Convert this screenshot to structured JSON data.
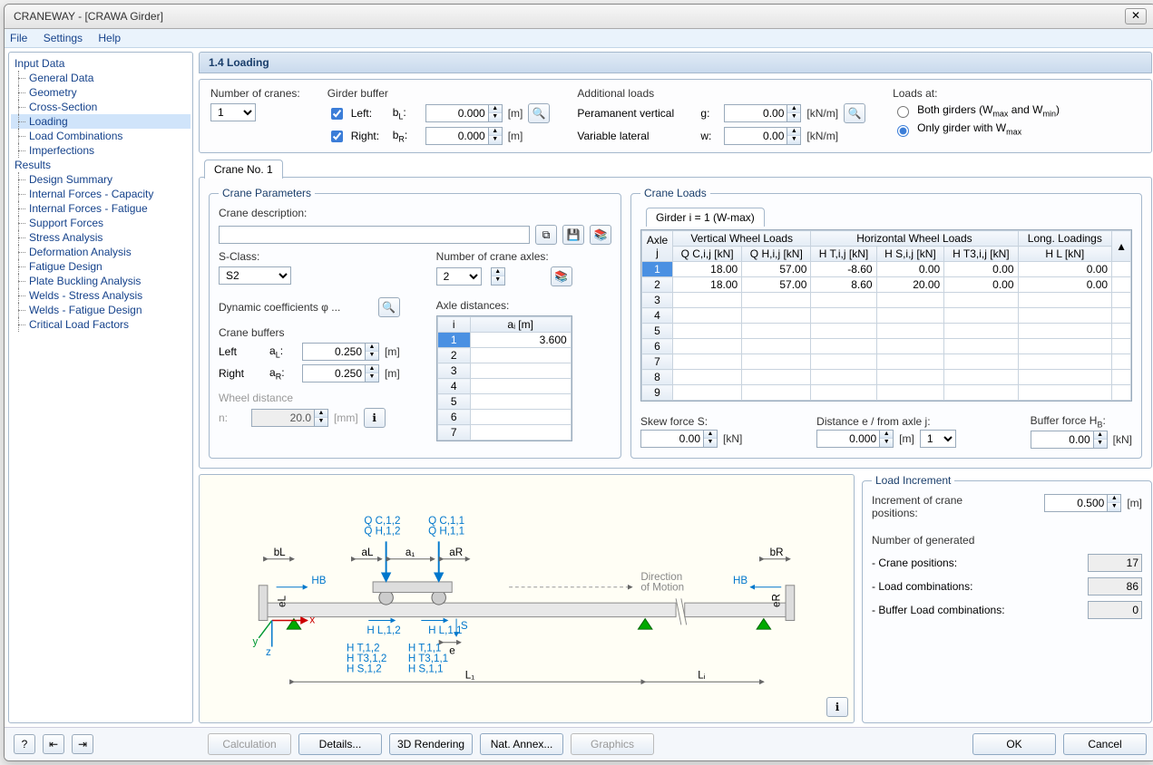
{
  "window": {
    "title": "CRANEWAY - [CRAWA Girder]"
  },
  "menu": [
    "File",
    "Settings",
    "Help"
  ],
  "tree": {
    "input": {
      "label": "Input Data",
      "items": [
        "General Data",
        "Geometry",
        "Cross-Section",
        "Loading",
        "Load Combinations",
        "Imperfections"
      ],
      "selected": 3
    },
    "results": {
      "label": "Results",
      "items": [
        "Design Summary",
        "Internal Forces - Capacity",
        "Internal Forces - Fatigue",
        "Support Forces",
        "Stress Analysis",
        "Deformation Analysis",
        "Fatigue Design",
        "Plate Buckling Analysis",
        "Welds - Stress Analysis",
        "Welds - Fatigue Design",
        "Critical Load Factors"
      ]
    }
  },
  "section": "1.4 Loading",
  "top": {
    "numCranesLabel": "Number of cranes:",
    "numCranes": "1",
    "girderBufferLabel": "Girder buffer",
    "left": {
      "checked": true,
      "label": "Left:",
      "sym": "bL:",
      "val": "0.000",
      "unit": "[m]"
    },
    "right": {
      "checked": true,
      "label": "Right:",
      "sym": "bR:",
      "val": "0.000",
      "unit": "[m]"
    },
    "addlLoadsLabel": "Additional loads",
    "permVert": {
      "label": "Peramanent vertical",
      "sym": "g:",
      "val": "0.00",
      "unit": "[kN/m]"
    },
    "varLat": {
      "label": "Variable lateral",
      "sym": "w:",
      "val": "0.00",
      "unit": "[kN/m]"
    },
    "loadsAtLabel": "Loads at:",
    "both": "Both girders (Wmax and Wmin)",
    "only": "Only girder with Wmax",
    "onlySelected": true
  },
  "craneTab": "Crane No. 1",
  "params": {
    "legend": "Crane Parameters",
    "descLabel": "Crane description:",
    "sclassLabel": "S-Class:",
    "sclass": "S2",
    "numAxlesLabel": "Number of crane axles:",
    "numAxles": "2",
    "dynCoefLabel": "Dynamic coefficients φ ...",
    "axleDistLabel": "Axle distances:",
    "axleTable": {
      "cols": [
        "i",
        "aᵢ [m]"
      ],
      "rows": [
        [
          "1",
          "3.600"
        ],
        [
          "2",
          ""
        ],
        [
          "3",
          ""
        ],
        [
          "4",
          ""
        ],
        [
          "5",
          ""
        ],
        [
          "6",
          ""
        ],
        [
          "7",
          ""
        ]
      ]
    },
    "buffersLabel": "Crane buffers",
    "bufLeft": {
      "label": "Left",
      "sym": "aL:",
      "val": "0.250",
      "unit": "[m]"
    },
    "bufRight": {
      "label": "Right",
      "sym": "aR:",
      "val": "0.250",
      "unit": "[m]"
    },
    "wheelDistLabel": "Wheel distance",
    "wheelDist": {
      "sym": "n:",
      "val": "20.0",
      "unit": "[mm]"
    }
  },
  "loads": {
    "legend": "Crane Loads",
    "tab": "Girder i = 1 (W-max)",
    "cols": {
      "axle": "Axle j",
      "vert": "Vertical Wheel Loads",
      "qc": "Q C,i,j [kN]",
      "qh": "Q H,i,j [kN]",
      "horiz": "Horizontal Wheel Loads",
      "ht": "H T,i,j [kN]",
      "hs": "H S,i,j [kN]",
      "ht3": "H T3,i,j [kN]",
      "long": "Long. Loadings",
      "hl": "H L [kN]"
    },
    "rows": [
      {
        "j": "1",
        "qc": "18.00",
        "qh": "57.00",
        "ht": "-8.60",
        "hs": "0.00",
        "ht3": "0.00",
        "hl": "0.00"
      },
      {
        "j": "2",
        "qc": "18.00",
        "qh": "57.00",
        "ht": "8.60",
        "hs": "20.00",
        "ht3": "0.00",
        "hl": "0.00"
      },
      {
        "j": "3"
      },
      {
        "j": "4"
      },
      {
        "j": "5"
      },
      {
        "j": "6"
      },
      {
        "j": "7"
      },
      {
        "j": "8"
      },
      {
        "j": "9"
      }
    ],
    "skew": {
      "label": "Skew force S:",
      "val": "0.00",
      "unit": "[kN]"
    },
    "dist": {
      "label": "Distance e / from axle j:",
      "val": "0.000",
      "unit": "[m]",
      "sel": "1"
    },
    "bufForce": {
      "label": "Buffer force HB:",
      "val": "0.00",
      "unit": "[kN]"
    }
  },
  "diagram": {
    "qc12": "Q C,1,2",
    "qh12": "Q H,1,2",
    "qc11": "Q C,1,1",
    "qh11": "Q H,1,1",
    "ht12": "H T,1,2",
    "ht312": "H T3,1,2",
    "hs12": "H S,1,2",
    "ht11": "H T,1,1",
    "ht311": "H T3,1,1",
    "hs11": "H S,1,1",
    "hl12": "H L,1,2",
    "hl11": "H L,1,1",
    "hb": "HB",
    "bl": "bL",
    "br": "bR",
    "al": "aL",
    "ar": "aR",
    "a1": "a₁",
    "s": "S",
    "e": "e",
    "el": "eL",
    "er": "eR",
    "dir": "Direction\nof Motion",
    "l1": "L₁",
    "li": "Lᵢ",
    "x": "x",
    "y": "y",
    "z": "z"
  },
  "increment": {
    "legend": "Load Increment",
    "incLabel": "Increment of crane positions:",
    "incVal": "0.500",
    "incUnit": "[m]",
    "numGenLabel": "Number of generated",
    "cranePos": {
      "label": "- Crane positions:",
      "val": "17"
    },
    "loadComb": {
      "label": "- Load combinations:",
      "val": "86"
    },
    "bufComb": {
      "label": "- Buffer Load combinations:",
      "val": "0"
    }
  },
  "footer": {
    "calc": "Calculation",
    "details": "Details...",
    "render": "3D Rendering",
    "annex": "Nat. Annex...",
    "graphics": "Graphics",
    "ok": "OK",
    "cancel": "Cancel"
  }
}
